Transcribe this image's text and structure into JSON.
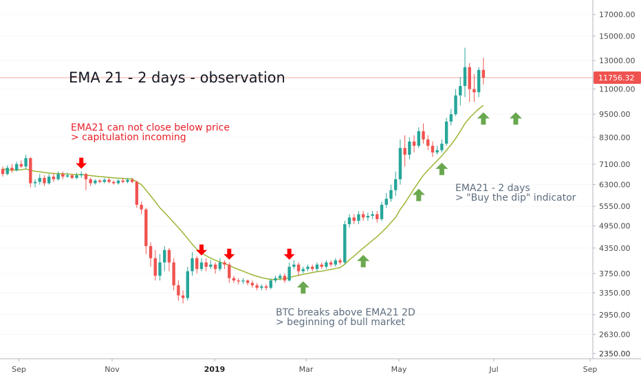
{
  "chart_data": {
    "type": "candlestick",
    "title": "EMA 21 - 2 days - observation",
    "y_scale": "log",
    "ylim": [
      2280,
      18500
    ],
    "y_ticks": [
      "17000.00",
      "15000.00",
      "13000.00",
      "11000.00",
      "9500.00",
      "8300.00",
      "7100.00",
      "6300.00",
      "5550.00",
      "4950.00",
      "4350.00",
      "3750.00",
      "3350.00",
      "2950.00",
      "2630.00",
      "2350.00"
    ],
    "x_ticks": [
      {
        "label": "Sep",
        "t": 27.5,
        "bold": false
      },
      {
        "label": "Nov",
        "t": 163,
        "bold": false
      },
      {
        "label": "2019",
        "t": 312,
        "bold": true
      },
      {
        "label": "Mar",
        "t": 445,
        "bold": false
      },
      {
        "label": "May",
        "t": 580,
        "bold": false
      },
      {
        "label": "Jul",
        "t": 718,
        "bold": false
      },
      {
        "label": "Sep",
        "t": 858,
        "bold": false
      }
    ],
    "last_price": "11756.32",
    "candles": [
      [
        6900,
        6700,
        7000,
        6600
      ],
      [
        6700,
        6950,
        7050,
        6650
      ],
      [
        6950,
        6850,
        7100,
        6750
      ],
      [
        6850,
        7100,
        7200,
        6800
      ],
      [
        7100,
        7000,
        7250,
        6950
      ],
      [
        7000,
        7350,
        7500,
        6900
      ],
      [
        7350,
        6350,
        7400,
        6200
      ],
      [
        6350,
        6400,
        6500,
        6200
      ],
      [
        6400,
        6550,
        6700,
        6300
      ],
      [
        6550,
        6350,
        6650,
        6250
      ],
      [
        6350,
        6600,
        6700,
        6300
      ],
      [
        6600,
        6500,
        6750,
        6400
      ],
      [
        6500,
        6700,
        6800,
        6450
      ],
      [
        6700,
        6600,
        6800,
        6500
      ],
      [
        6600,
        6650,
        6750,
        6550
      ],
      [
        6650,
        6550,
        6700,
        6500
      ],
      [
        6550,
        6650,
        6750,
        6500
      ],
      [
        6650,
        6700,
        6800,
        6550
      ],
      [
        6700,
        6500,
        6750,
        6100
      ],
      [
        6500,
        6350,
        6550,
        6250
      ],
      [
        6350,
        6450,
        6500,
        6300
      ],
      [
        6450,
        6400,
        6500,
        6350
      ],
      [
        6400,
        6480,
        6550,
        6350
      ],
      [
        6480,
        6400,
        6550,
        6350
      ],
      [
        6400,
        6350,
        6450,
        6300
      ],
      [
        6350,
        6450,
        6500,
        6300
      ],
      [
        6450,
        6400,
        6550,
        6350
      ],
      [
        6400,
        6480,
        6550,
        6350
      ],
      [
        6480,
        6400,
        6550,
        6350
      ],
      [
        6400,
        5600,
        6450,
        5500
      ],
      [
        5600,
        5450,
        5700,
        5300
      ],
      [
        5450,
        4400,
        5500,
        4200
      ],
      [
        4400,
        4100,
        4500,
        3900
      ],
      [
        4100,
        3700,
        4300,
        3600
      ],
      [
        3700,
        4000,
        4200,
        3600
      ],
      [
        4000,
        4300,
        4400,
        3800
      ],
      [
        4300,
        4000,
        4350,
        3800
      ],
      [
        4000,
        3500,
        4100,
        3400
      ],
      [
        3500,
        3300,
        3600,
        3200
      ],
      [
        3300,
        3250,
        3400,
        3150
      ],
      [
        3250,
        3800,
        3900,
        3200
      ],
      [
        3800,
        4100,
        4250,
        3700
      ],
      [
        4100,
        3850,
        4150,
        3750
      ],
      [
        3850,
        4000,
        4100,
        3800
      ],
      [
        4000,
        3900,
        4100,
        3800
      ],
      [
        3900,
        3950,
        4050,
        3850
      ],
      [
        3950,
        3850,
        4000,
        3750
      ],
      [
        3850,
        4000,
        4100,
        3800
      ],
      [
        4000,
        3950,
        4050,
        3850
      ],
      [
        3950,
        3650,
        4000,
        3550
      ],
      [
        3650,
        3600,
        3700,
        3550
      ],
      [
        3600,
        3580,
        3650,
        3520
      ],
      [
        3580,
        3600,
        3650,
        3530
      ],
      [
        3600,
        3550,
        3620,
        3500
      ],
      [
        3550,
        3500,
        3600,
        3450
      ],
      [
        3500,
        3450,
        3550,
        3400
      ],
      [
        3450,
        3480,
        3520,
        3400
      ],
      [
        3480,
        3450,
        3520,
        3400
      ],
      [
        3450,
        3600,
        3650,
        3420
      ],
      [
        3600,
        3650,
        3700,
        3550
      ],
      [
        3650,
        3700,
        3750,
        3600
      ],
      [
        3700,
        3600,
        3750,
        3550
      ],
      [
        3600,
        3900,
        4000,
        3580
      ],
      [
        3900,
        3950,
        4050,
        3850
      ],
      [
        3950,
        3800,
        4000,
        3700
      ],
      [
        3800,
        3850,
        3900,
        3750
      ],
      [
        3850,
        3900,
        3950,
        3800
      ],
      [
        3900,
        3850,
        3950,
        3800
      ],
      [
        3850,
        3950,
        4000,
        3800
      ],
      [
        3950,
        3900,
        4000,
        3850
      ],
      [
        3900,
        4000,
        4050,
        3850
      ],
      [
        4000,
        3950,
        4050,
        3900
      ],
      [
        3950,
        4050,
        4100,
        3900
      ],
      [
        4050,
        4000,
        4100,
        3950
      ],
      [
        4000,
        5000,
        5100,
        3950
      ],
      [
        5000,
        5200,
        5300,
        4900
      ],
      [
        5200,
        5100,
        5300,
        5000
      ],
      [
        5100,
        5300,
        5400,
        5000
      ],
      [
        5300,
        5200,
        5400,
        5100
      ],
      [
        5200,
        5250,
        5350,
        5100
      ],
      [
        5250,
        5300,
        5400,
        5150
      ],
      [
        5300,
        5150,
        5400,
        5050
      ],
      [
        5150,
        5600,
        5700,
        5100
      ],
      [
        5600,
        5800,
        6000,
        5500
      ],
      [
        5800,
        6100,
        6300,
        5700
      ],
      [
        6100,
        6500,
        6800,
        5900
      ],
      [
        6500,
        7800,
        8200,
        6300
      ],
      [
        7800,
        7500,
        8400,
        7000
      ],
      [
        7500,
        8100,
        8300,
        7300
      ],
      [
        8100,
        7900,
        8400,
        7600
      ],
      [
        7900,
        8600,
        8800,
        7800
      ],
      [
        8600,
        8200,
        9000,
        8000
      ],
      [
        8200,
        7900,
        8400,
        7700
      ],
      [
        7900,
        7600,
        8100,
        7400
      ],
      [
        7600,
        7700,
        7900,
        7500
      ],
      [
        7700,
        8000,
        8200,
        7600
      ],
      [
        8000,
        9100,
        9300,
        7900
      ],
      [
        9100,
        9500,
        9800,
        8900
      ],
      [
        9500,
        10600,
        11000,
        9400
      ],
      [
        10600,
        11200,
        11800,
        10000
      ],
      [
        11200,
        12500,
        14000,
        10500
      ],
      [
        12500,
        11000,
        12800,
        10200
      ],
      [
        11000,
        10800,
        12000,
        10200
      ],
      [
        10800,
        12300,
        12500,
        10500
      ],
      [
        12300,
        11756,
        13200,
        11300
      ]
    ],
    "ema": [
      6900,
      6870,
      6850,
      6860,
      6870,
      6900,
      6850,
      6810,
      6790,
      6760,
      6740,
      6720,
      6720,
      6710,
      6700,
      6690,
      6680,
      6680,
      6660,
      6640,
      6620,
      6600,
      6590,
      6570,
      6550,
      6540,
      6530,
      6520,
      6510,
      6400,
      6300,
      6100,
      5900,
      5700,
      5500,
      5350,
      5200,
      5050,
      4900,
      4750,
      4600,
      4450,
      4320,
      4230,
      4160,
      4100,
      4050,
      4010,
      3970,
      3930,
      3880,
      3840,
      3800,
      3760,
      3720,
      3690,
      3660,
      3640,
      3620,
      3620,
      3630,
      3640,
      3660,
      3690,
      3710,
      3730,
      3750,
      3770,
      3790,
      3800,
      3820,
      3840,
      3860,
      3880,
      3960,
      4060,
      4150,
      4250,
      4350,
      4450,
      4550,
      4650,
      4770,
      4900,
      5050,
      5200,
      5450,
      5650,
      5900,
      6150,
      6400,
      6650,
      6850,
      7050,
      7250,
      7450,
      7700,
      7950,
      8250,
      8600,
      9000,
      9300,
      9550,
      9800,
      10000
    ]
  },
  "annotations": {
    "capitulation_line1": "EMA21 can not close below price",
    "capitulation_line2": "> capitulation incoming",
    "breakout_line1": "BTC breaks above EMA21 2D",
    "breakout_line2": "> beginning of bull market",
    "dip_line1": "EMA21 - 2 days",
    "dip_line2": "> \"Buy the dip\" indicator"
  },
  "colors": {
    "up": "#26a69a",
    "down": "#ef5350",
    "ema": "#9ab533",
    "red_note": "#e8202a",
    "gray_note": "#5d6d7e",
    "green_arrow": "#6aa84f",
    "red_arrow": "#ff0000",
    "price_line": "#f3a79f",
    "price_label": "#ef5350"
  },
  "arrow_markers": {
    "red_candle_indices": [
      17,
      43,
      49,
      62
    ],
    "green_candle_indices": [
      65,
      78,
      90,
      95,
      104,
      111
    ]
  }
}
